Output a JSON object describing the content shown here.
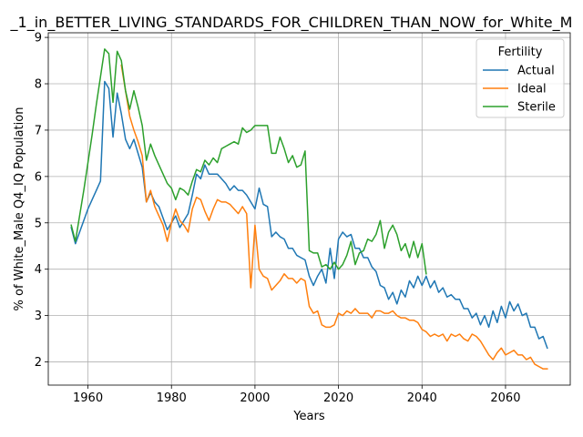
{
  "chart_data": {
    "type": "line",
    "title": "_1_in_BETTER_LIVING_STANDARDS_FOR_CHILDREN_THAN_NOW_for_White_M",
    "xlabel": "Years",
    "ylabel": "% of White_Male Q4_IQ Population",
    "xlim": [
      1950.5,
      2075.5
    ],
    "ylim": [
      1.5,
      9.1
    ],
    "xticks": [
      1960,
      1980,
      2000,
      2020,
      2040,
      2060
    ],
    "yticks": [
      2,
      3,
      4,
      5,
      6,
      7,
      8,
      9
    ],
    "grid": true,
    "legend": {
      "title": "Fertility",
      "position": "top-right"
    },
    "series": [
      {
        "name": "Actual",
        "color": "#1f77b4",
        "x": [
          1956,
          1957,
          1958,
          1959,
          1960,
          1961,
          1962,
          1963,
          1964,
          1965,
          1966,
          1967,
          1968,
          1969,
          1970,
          1971,
          1972,
          1973,
          1974,
          1975,
          1976,
          1977,
          1978,
          1979,
          1980,
          1981,
          1982,
          1983,
          1984,
          1985,
          1986,
          1987,
          1988,
          1989,
          1990,
          1991,
          1992,
          1993,
          1994,
          1995,
          1996,
          1997,
          1998,
          1999,
          2000,
          2001,
          2002,
          2003,
          2004,
          2005,
          2006,
          2007,
          2008,
          2009,
          2010,
          2011,
          2012,
          2013,
          2014,
          2015,
          2016,
          2017,
          2018,
          2019,
          2020,
          2021,
          2022,
          2023,
          2024,
          2025,
          2026,
          2027,
          2028,
          2029,
          2030,
          2031,
          2032,
          2033,
          2034,
          2035,
          2036,
          2037,
          2038,
          2039,
          2040,
          2041,
          2042,
          2043,
          2044,
          2045,
          2046,
          2047,
          2048,
          2049,
          2050,
          2051,
          2052,
          2053,
          2054,
          2055,
          2056,
          2057,
          2058,
          2059,
          2060,
          2061,
          2062,
          2063,
          2064,
          2065,
          2066,
          2067,
          2068,
          2069,
          2070
        ],
        "values": [
          4.9,
          4.55,
          4.8,
          5.05,
          5.3,
          5.5,
          5.7,
          5.9,
          8.05,
          7.9,
          6.85,
          7.8,
          7.35,
          6.8,
          6.6,
          6.8,
          6.5,
          6.2,
          5.45,
          5.65,
          5.45,
          5.35,
          5.1,
          4.85,
          5.0,
          5.15,
          4.9,
          5.05,
          5.2,
          5.6,
          6.05,
          5.95,
          6.25,
          6.05,
          6.05,
          6.05,
          5.95,
          5.85,
          5.7,
          5.8,
          5.7,
          5.7,
          5.6,
          5.45,
          5.3,
          5.75,
          5.4,
          5.35,
          4.7,
          4.8,
          4.7,
          4.65,
          4.45,
          4.45,
          4.3,
          4.25,
          4.2,
          3.85,
          3.65,
          3.85,
          4.0,
          3.7,
          4.45,
          3.8,
          4.65,
          4.8,
          4.7,
          4.75,
          4.45,
          4.45,
          4.25,
          4.25,
          4.05,
          3.95,
          3.65,
          3.6,
          3.35,
          3.5,
          3.25,
          3.55,
          3.4,
          3.75,
          3.6,
          3.85,
          3.65,
          3.85,
          3.6,
          3.75,
          3.5,
          3.6,
          3.4,
          3.45,
          3.35,
          3.35,
          3.15,
          3.15,
          2.95,
          3.05,
          2.8,
          3.0,
          2.75,
          3.1,
          2.85,
          3.2,
          2.95,
          3.3,
          3.1,
          3.25,
          3.0,
          3.05,
          2.75,
          2.75,
          2.5,
          2.55,
          2.3
        ]
      },
      {
        "name": "Ideal",
        "color": "#ff7f0e",
        "x": [
          1968,
          1969,
          1970,
          1971,
          1972,
          1973,
          1974,
          1975,
          1976,
          1977,
          1978,
          1979,
          1980,
          1981,
          1982,
          1983,
          1984,
          1985,
          1986,
          1987,
          1988,
          1989,
          1990,
          1991,
          1992,
          1993,
          1994,
          1995,
          1996,
          1997,
          1998,
          1999,
          2000,
          2001,
          2002,
          2003,
          2004,
          2005,
          2006,
          2007,
          2008,
          2009,
          2010,
          2011,
          2012,
          2013,
          2014,
          2015,
          2016,
          2017,
          2018,
          2019,
          2020,
          2021,
          2022,
          2023,
          2024,
          2025,
          2026,
          2027,
          2028,
          2029,
          2030,
          2031,
          2032,
          2033,
          2034,
          2035,
          2036,
          2037,
          2038,
          2039,
          2040,
          2041,
          2042,
          2043,
          2044,
          2045,
          2046,
          2047,
          2048,
          2049,
          2050,
          2051,
          2052,
          2053,
          2054,
          2055,
          2056,
          2057,
          2058,
          2059,
          2060,
          2061,
          2062,
          2063,
          2064,
          2065,
          2066,
          2067,
          2068,
          2069,
          2070
        ],
        "values": [
          8.4,
          7.85,
          7.3,
          7.0,
          6.75,
          6.45,
          5.45,
          5.7,
          5.35,
          5.15,
          4.95,
          4.6,
          5.0,
          5.3,
          5.05,
          4.95,
          4.8,
          5.3,
          5.55,
          5.5,
          5.25,
          5.05,
          5.3,
          5.5,
          5.45,
          5.45,
          5.4,
          5.3,
          5.2,
          5.35,
          5.2,
          3.6,
          4.95,
          4.0,
          3.85,
          3.8,
          3.55,
          3.65,
          3.75,
          3.9,
          3.8,
          3.8,
          3.7,
          3.8,
          3.75,
          3.2,
          3.05,
          3.1,
          2.8,
          2.75,
          2.75,
          2.8,
          3.05,
          3.0,
          3.1,
          3.05,
          3.15,
          3.05,
          3.05,
          3.05,
          2.95,
          3.1,
          3.1,
          3.05,
          3.05,
          3.1,
          3.0,
          2.95,
          2.95,
          2.9,
          2.9,
          2.85,
          2.7,
          2.65,
          2.55,
          2.6,
          2.55,
          2.6,
          2.45,
          2.6,
          2.55,
          2.6,
          2.5,
          2.45,
          2.6,
          2.55,
          2.45,
          2.3,
          2.15,
          2.05,
          2.2,
          2.3,
          2.15,
          2.2,
          2.25,
          2.15,
          2.15,
          2.05,
          2.1,
          1.95,
          1.9,
          1.85,
          1.85
        ]
      },
      {
        "name": "Sterile",
        "color": "#2ca02c",
        "x": [
          1956,
          1957,
          1958,
          1959,
          1960,
          1961,
          1962,
          1963,
          1964,
          1965,
          1966,
          1967,
          1968,
          1969,
          1970,
          1971,
          1972,
          1973,
          1974,
          1975,
          1976,
          1977,
          1978,
          1979,
          1980,
          1981,
          1982,
          1983,
          1984,
          1985,
          1986,
          1987,
          1988,
          1989,
          1990,
          1991,
          1992,
          1993,
          1994,
          1995,
          1996,
          1997,
          1998,
          1999,
          2000,
          2001,
          2002,
          2003,
          2004,
          2005,
          2006,
          2007,
          2008,
          2009,
          2010,
          2011,
          2012,
          2013,
          2014,
          2015,
          2016,
          2017,
          2018,
          2019,
          2020,
          2021,
          2022,
          2023,
          2024,
          2025,
          2026,
          2027,
          2028,
          2029,
          2030,
          2031,
          2032,
          2033,
          2034,
          2035,
          2036,
          2037,
          2038,
          2039,
          2040,
          2041
        ],
        "values": [
          4.95,
          4.6,
          5.15,
          5.7,
          6.3,
          6.9,
          7.55,
          8.15,
          8.75,
          8.65,
          7.6,
          8.7,
          8.5,
          7.85,
          7.45,
          7.85,
          7.5,
          7.1,
          6.35,
          6.7,
          6.45,
          6.25,
          6.05,
          5.85,
          5.75,
          5.5,
          5.75,
          5.7,
          5.6,
          5.9,
          6.15,
          6.1,
          6.35,
          6.25,
          6.4,
          6.3,
          6.6,
          6.65,
          6.7,
          6.75,
          6.7,
          7.05,
          6.95,
          7.0,
          7.1,
          7.1,
          7.1,
          7.1,
          6.5,
          6.5,
          6.85,
          6.6,
          6.3,
          6.45,
          6.2,
          6.25,
          6.55,
          4.4,
          4.35,
          4.35,
          4.05,
          4.1,
          4.0,
          4.15,
          4.0,
          4.1,
          4.3,
          4.6,
          4.1,
          4.35,
          4.4,
          4.65,
          4.6,
          4.75,
          5.05,
          4.45,
          4.8,
          4.95,
          4.75,
          4.4,
          4.55,
          4.25,
          4.6,
          4.25,
          4.55,
          3.9
        ]
      }
    ]
  }
}
